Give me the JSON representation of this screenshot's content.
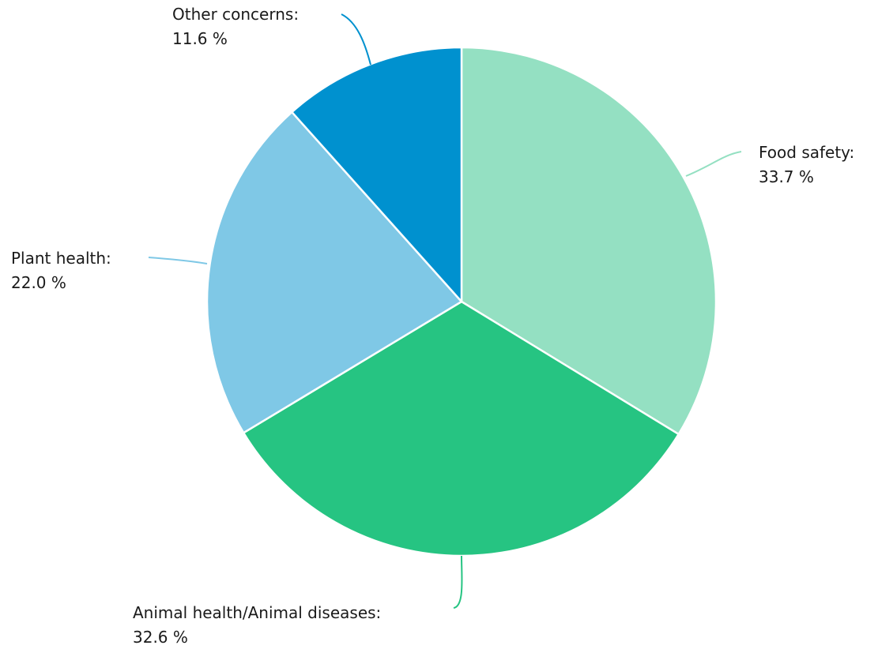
{
  "chart_data": {
    "type": "pie",
    "start_angle": "12 o'clock",
    "direction": "clockwise",
    "slices": [
      {
        "label": "Food safety:",
        "value": 33.7,
        "value_text": "33.7 %",
        "color": "#94e0c2"
      },
      {
        "label": "Animal health/Animal diseases:",
        "value": 32.6,
        "value_text": "32.6 %",
        "color": "#26c482"
      },
      {
        "label": "Plant health:",
        "value": 22.0,
        "value_text": "22.0 %",
        "color": "#7fc8e6"
      },
      {
        "label": "Other concerns:",
        "value": 11.6,
        "value_text": "11.6 %",
        "color": "#0091cf"
      }
    ]
  }
}
